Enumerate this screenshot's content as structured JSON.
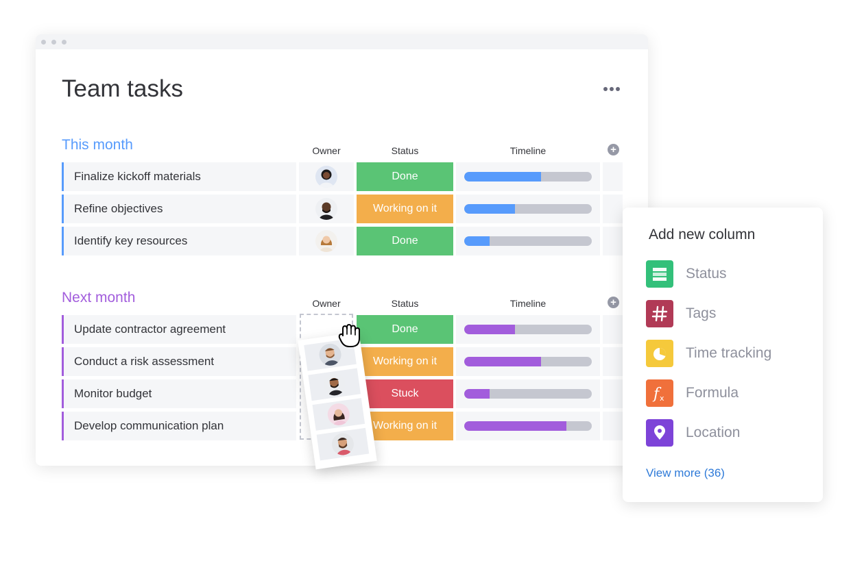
{
  "board": {
    "title": "Team tasks"
  },
  "columns": {
    "owner": "Owner",
    "status": "Status",
    "timeline": "Timeline"
  },
  "groups": [
    {
      "title": "This month",
      "color": "#579bfc",
      "rows": [
        {
          "name": "Finalize kickoff materials",
          "status": "Done",
          "status_color": "#5ac475",
          "progress": 0.6
        },
        {
          "name": "Refine objectives",
          "status": "Working on it",
          "status_color": "#f3ae4b",
          "progress": 0.4
        },
        {
          "name": "Identify key resources",
          "status": "Done",
          "status_color": "#5ac475",
          "progress": 0.2
        }
      ]
    },
    {
      "title": "Next month",
      "color": "#a25ddc",
      "rows": [
        {
          "name": "Update contractor agreement",
          "status": "Done",
          "status_color": "#5ac475",
          "progress": 0.4
        },
        {
          "name": "Conduct a risk assessment",
          "status": "Working on it",
          "status_color": "#f3ae4b",
          "progress": 0.6
        },
        {
          "name": "Monitor budget",
          "status": "Stuck",
          "status_color": "#db4f5e",
          "progress": 0.2
        },
        {
          "name": "Develop communication plan",
          "status": "Working on it",
          "status_color": "#f3ae4b",
          "progress": 0.8
        }
      ]
    }
  ],
  "add_column_panel": {
    "title": "Add new column",
    "options": [
      {
        "label": "Status",
        "icon": "status-icon",
        "color": "#33c07a"
      },
      {
        "label": "Tags",
        "icon": "hashtag-icon",
        "color": "#b13a56"
      },
      {
        "label": "Time tracking",
        "icon": "clock-icon",
        "color": "#f5c93b"
      },
      {
        "label": "Formula",
        "icon": "formula-icon",
        "color": "#f0703b"
      },
      {
        "label": "Location",
        "icon": "location-pin-icon",
        "color": "#7d43d8"
      }
    ],
    "view_more": "View more (36)"
  }
}
